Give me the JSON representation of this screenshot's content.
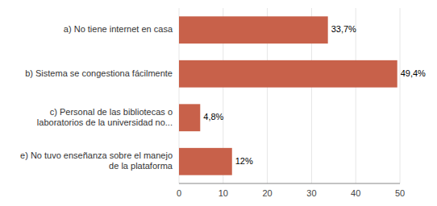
{
  "chart_data": {
    "type": "bar",
    "orientation": "horizontal",
    "categories": [
      "e) No tuvo enseñanza sobre el manejo\nde la plataforma",
      "c) Personal de las bibliotecas o\nlaboratorios de la universidad no...",
      "b) Sistema se congestiona fácilmente",
      "a) No tiene internet en casa"
    ],
    "values": [
      12,
      4.8,
      49.4,
      33.7
    ],
    "value_labels": [
      "12%",
      "4,8%",
      "49,4%",
      "33,7%"
    ],
    "data_labels": true,
    "color": "#c8614a",
    "xlim": [
      0,
      50
    ],
    "xticks": [
      0,
      10,
      20,
      30,
      40,
      50
    ]
  }
}
